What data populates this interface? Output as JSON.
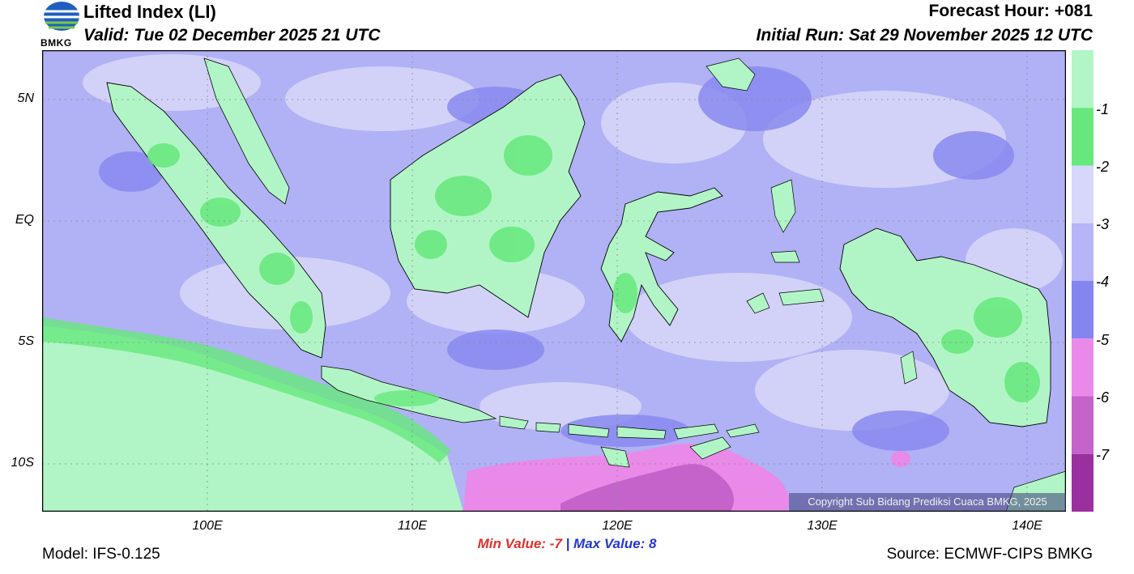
{
  "header": {
    "title": "Lifted Index (LI)",
    "valid": "Valid: Tue 02 December 2025 21 UTC",
    "forecast_hour": "Forecast Hour: +081",
    "initial_run": "Initial Run: Sat 29 November 2025 12 UTC"
  },
  "logo": {
    "text": "BMKG",
    "icon": "bmkg-globe-icon"
  },
  "axes": {
    "x_ticks": [
      "100E",
      "110E",
      "120E",
      "130E",
      "140E"
    ],
    "y_ticks": [
      "5N",
      "EQ",
      "5S",
      "10S"
    ]
  },
  "stats": {
    "min_label": "Min Value:",
    "min_value": "-7",
    "separator": "|",
    "max_label": "Max Value:",
    "max_value": "8"
  },
  "footer": {
    "model": "Model: IFS-0.125",
    "source": "Source: ECMWF-CIPS BMKG",
    "copyright": "Copyright Sub Bidang Prediksi Cuaca BMKG, 2025"
  },
  "colorbar": {
    "labels": [
      "-1",
      "-2",
      "-3",
      "-4",
      "-5",
      "-6",
      "-7"
    ],
    "colors": [
      "#b3f5c7",
      "#66e87c",
      "#d7d7fb",
      "#b5b5f7",
      "#8585f0",
      "#e98ae8",
      "#c463ca",
      "#9a2f9e"
    ]
  },
  "map_colors": {
    "ocean_base": "#b1b1f5",
    "ocean_light": "#d6d6fa",
    "ocean_dark": "#8a8af0",
    "land_base": "#b1f5c6",
    "green_strong": "#66e87c",
    "pink": "#e98ae8",
    "magenta": "#c463ca"
  }
}
